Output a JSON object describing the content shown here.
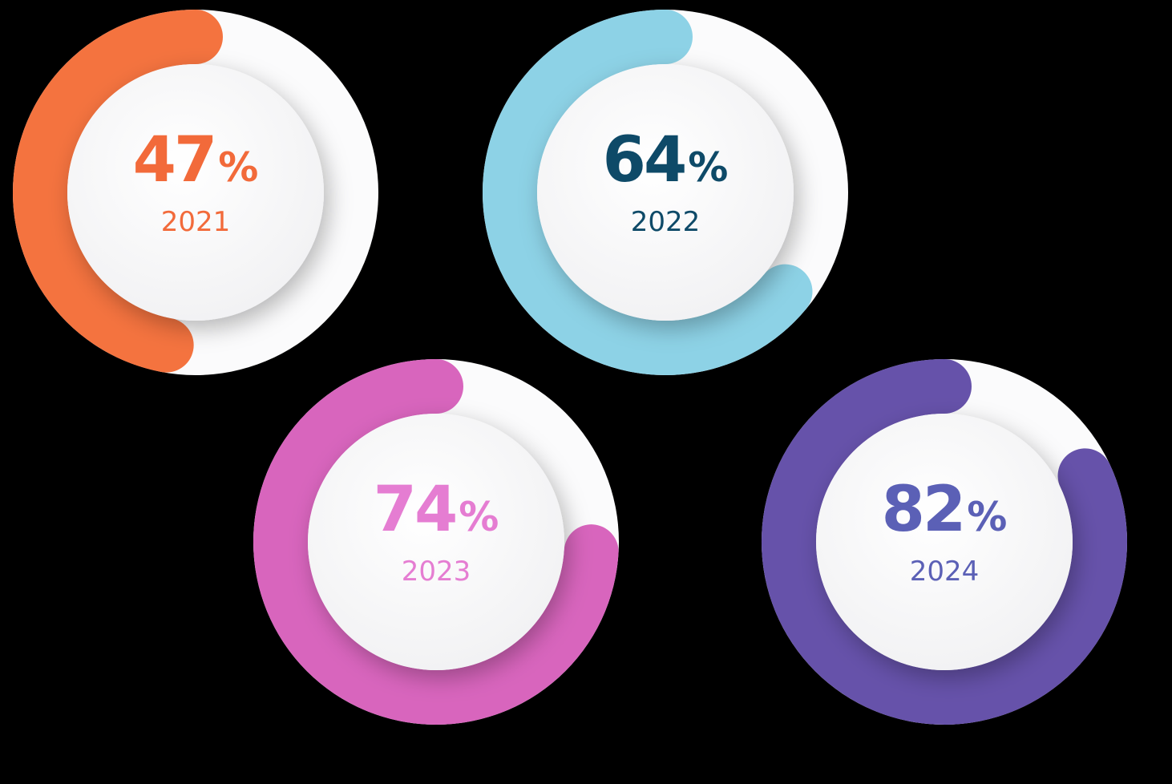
{
  "chart_data": {
    "type": "radial-progress",
    "categories": [
      "2021",
      "2022",
      "2023",
      "2024"
    ],
    "values": [
      47,
      64,
      74,
      82
    ],
    "value_labels": [
      "47%",
      "64%",
      "74%",
      "82%"
    ],
    "colors": [
      "#f4733f",
      "#8dd2e6",
      "#d865bd",
      "#6652aa"
    ],
    "label_colors": [
      "#f26a3a",
      "#0e4a68",
      "#e57dd2",
      "#5b60b6"
    ],
    "ylim": [
      0,
      100
    ]
  }
}
